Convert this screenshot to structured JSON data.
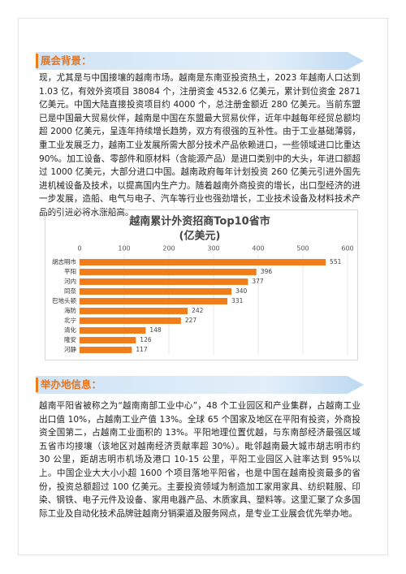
{
  "background": {
    "heading": "展会背景：",
    "paragraph": "现，尤其是与中国接壤的越南市场。越南是东南亚投资热土，2023 年越南人口达到 1.03 亿，有效外资项目 38084 个，注册资金 4532.6 亿美元，累计到位资金 2871 亿美元。中国大陆直接投资项目约 4000 个，总注册金额近 280 亿美元。当前东盟已是中国最大贸易伙伴，越南是中国在东盟最大贸易伙伴，近年中越每年经贸总额均超 2000 亿美元，呈连年持续增长趋势，双方有很强的互补性。由于工业基础薄弱，重工业发展乏力，越南工业发展所需大部分技术产品依赖进口，一些领域进口比重达 90%。加工设备、零部件和原材料（含能源产品）是进口类别中的大头，年进口额超过 1000 亿美元，大部分进口中国。越南政府每年计划投资 260 亿美元引进外国先进机械设备及技术，以提高国内生产力。随着越南外商投资的增长，出口型经济的进一步发展，造船、电气与电子、汽车等行业也强劲增长，工业技术设备及材料技术产品的引进必将水涨船高。"
  },
  "chart_data": {
    "type": "bar",
    "orientation": "horizontal",
    "title": "越南累计外资招商Top10省市",
    "subtitle": "(亿美元)",
    "categories": [
      "胡志明市",
      "平阳",
      "河内",
      "同奈",
      "巴地头顿",
      "海防",
      "北宁",
      "清化",
      "隆安",
      "河静"
    ],
    "values": [
      551,
      396,
      377,
      340,
      331,
      242,
      227,
      148,
      126,
      117
    ],
    "color": "#f07d1c",
    "xlim": [
      0,
      600
    ],
    "xticks": [
      0,
      100,
      200,
      300,
      400,
      500,
      600
    ],
    "grid": true
  },
  "venue": {
    "heading": "举办地信息：",
    "paragraph": "越南平阳省被称之为“越南南部工业中心”，48 个工业园区和产业集群，占越南工业出口值 10%，占越南工业产值 13%。全球 65 个国家及地区在平阳有投资，外商投资全国第二，占越南工业面积的 13%。平阳地理位置优越，与东南部经济最强区域五省市均接壤（该地区对越南经济贡献率超 30%）。毗邻越南最大城市胡志明市约 30 公里，距胡志明市机场及港口 10-15 公里，平阳工业园区入驻率达到 95%以上。中国企业大大小小超 1600 个项目落地平阳省，也是中国在越南投资最多的省份，投资总额超过 100 亿美元。主要投资领域为制造加工家用家具、纺织鞋服、印染、钢铁、电子元件及设备、家用电器产品、木质家具、塑料等。这里汇聚了众多国际工业及自动化技术品牌驻越南分销渠道及服务网点，是专业工业展会优先举办地。"
  }
}
